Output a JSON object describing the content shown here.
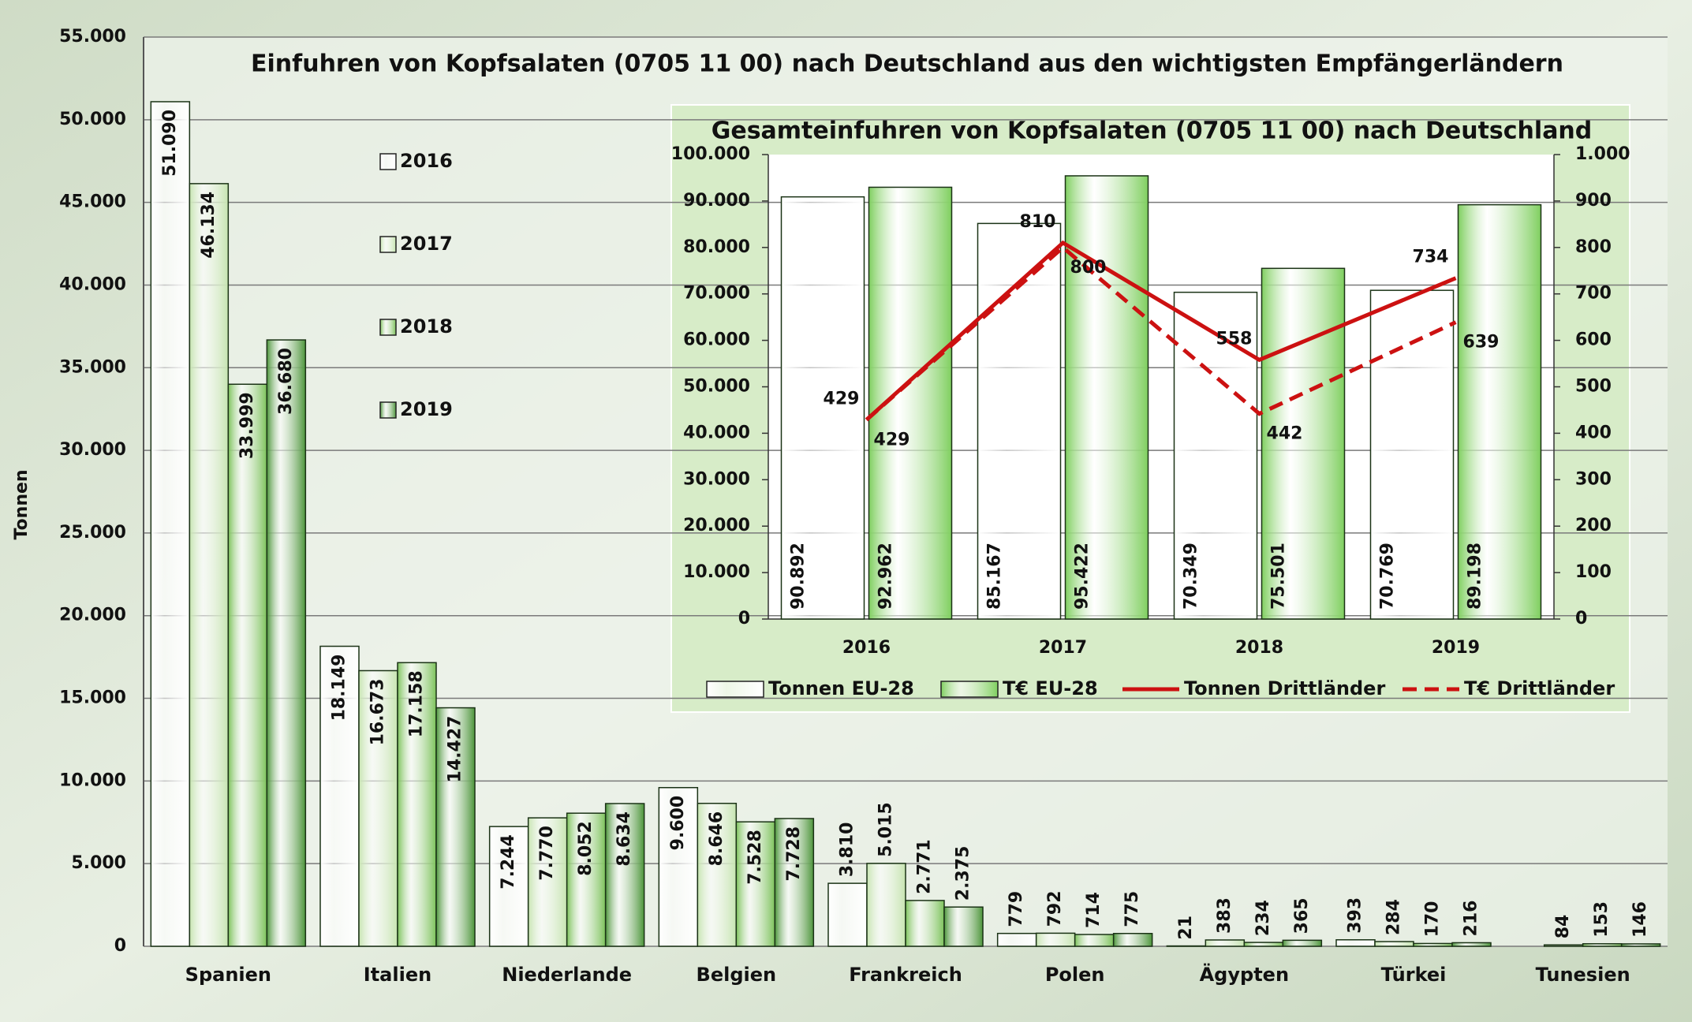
{
  "chart_data": [
    {
      "type": "bar",
      "title": "Einfuhren von Kopfsalaten (0705 11 00) nach Deutschland aus den wichtigsten Empfängerländern",
      "y_label": "Tonnen",
      "categories": [
        "Spanien",
        "Italien",
        "Niederlande",
        "Belgien",
        "Frankreich",
        "Polen",
        "Ägypten",
        "Türkei",
        "Tunesien"
      ],
      "series": [
        {
          "name": "2016",
          "color": "#ffffff",
          "values": [
            51090,
            18149,
            7244,
            9600,
            3810,
            779,
            21,
            393,
            null
          ],
          "value_labels": [
            "51.090",
            "18.149",
            "7.244",
            "9.600",
            "3.810",
            "779",
            "21",
            "393",
            null
          ]
        },
        {
          "name": "2017",
          "color": "#c6e4b0",
          "values": [
            46134,
            16673,
            7770,
            8646,
            5015,
            792,
            383,
            284,
            84
          ],
          "value_labels": [
            "46.134",
            "16.673",
            "7.770",
            "8.646",
            "5.015",
            "792",
            "383",
            "284",
            "84"
          ]
        },
        {
          "name": "2018",
          "color": "#7cc25a",
          "values": [
            33999,
            17158,
            8052,
            7528,
            2771,
            714,
            234,
            170,
            153
          ],
          "value_labels": [
            "33.999",
            "17.158",
            "8.052",
            "7.528",
            "2.771",
            "714",
            "234",
            "170",
            "153"
          ]
        },
        {
          "name": "2019",
          "color": "#4c953a",
          "values": [
            36680,
            14427,
            8634,
            7728,
            2375,
            775,
            365,
            216,
            146
          ],
          "value_labels": [
            "36.680",
            "14.427",
            "8.634",
            "7.728",
            "2.375",
            "775",
            "365",
            "216",
            "146"
          ]
        }
      ],
      "ylim": [
        0,
        55000
      ],
      "yticks": [
        0,
        {
          "value": 5000,
          "label": "5.000"
        },
        {
          "value": 10000,
          "label": "10.000"
        },
        {
          "value": 15000,
          "label": "15.000"
        },
        {
          "value": 20000,
          "label": "20.000"
        },
        {
          "value": 25000,
          "label": "25.000"
        },
        {
          "value": 30000,
          "label": "30.000"
        },
        {
          "value": 35000,
          "label": "35.000"
        },
        {
          "value": 40000,
          "label": "40.000"
        },
        {
          "value": 45000,
          "label": "45.000"
        },
        {
          "value": 50000,
          "label": "50.000"
        },
        {
          "value": 55000,
          "label": "55.000"
        }
      ],
      "grid": true
    },
    {
      "type": "combo",
      "title": "Gesamteinfuhren von Kopfsalaten (0705 11 00) nach Deutschland",
      "categories": [
        "2016",
        "2017",
        "2018",
        "2019"
      ],
      "series": [
        {
          "name": "Tonnen EU-28",
          "type": "bar",
          "color": "#ffffff",
          "values": [
            90892,
            85167,
            70349,
            70769
          ],
          "value_labels": [
            "90.892",
            "85.167",
            "70.349",
            "70.769"
          ]
        },
        {
          "name": "T€ EU-28",
          "type": "bar",
          "color": "#7fcf5f",
          "values": [
            92962,
            95422,
            75501,
            89198
          ],
          "value_labels": [
            "92.962",
            "95.422",
            "75.501",
            "89.198"
          ]
        },
        {
          "name": "Tonnen Drittländer",
          "type": "line",
          "color": "#cc1111",
          "axis": "y2",
          "values": [
            429,
            810,
            558,
            734
          ]
        },
        {
          "name": "T€ Drittländer",
          "type": "line",
          "color": "#cc1111",
          "axis": "y2",
          "dashed": true,
          "values": [
            429,
            800,
            442,
            639
          ]
        }
      ],
      "ylim": [
        0,
        100000
      ],
      "yticks": [
        0,
        {
          "value": 10000,
          "label": "10.000"
        },
        {
          "value": 20000,
          "label": "20.000"
        },
        {
          "value": 30000,
          "label": "30.000"
        },
        {
          "value": 40000,
          "label": "40.000"
        },
        {
          "value": 50000,
          "label": "50.000"
        },
        {
          "value": 60000,
          "label": "60.000"
        },
        {
          "value": 70000,
          "label": "70.000"
        },
        {
          "value": 80000,
          "label": "80.000"
        },
        {
          "value": 90000,
          "label": "90.000"
        },
        {
          "value": 100000,
          "label": "100.000"
        }
      ],
      "y2lim": [
        0,
        1000
      ],
      "y2ticks": [
        0,
        100,
        200,
        300,
        400,
        500,
        600,
        700,
        800,
        900,
        {
          "value": 1000,
          "label": "1.000"
        }
      ],
      "grid": false
    }
  ]
}
